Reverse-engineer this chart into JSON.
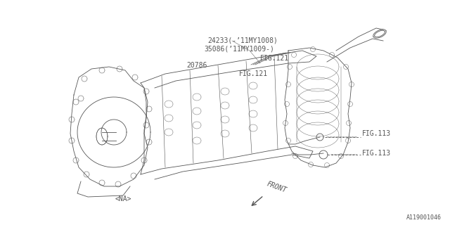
{
  "bg_color": "#ffffff",
  "line_color": "#555555",
  "lw": 0.6,
  "labels": {
    "part1": "24233(-’11MY1008)",
    "part2": "35086(’11MY1009-)",
    "fig121a": "FIG.121",
    "fig121b": "FIG.121",
    "part3": "20786",
    "fig113a": "FIG.113",
    "fig113b": "FIG.113",
    "na": "<NA>",
    "front": "FRONT",
    "part_num": "A119001046"
  },
  "font_size": 7.0,
  "small_font_size": 6.0
}
